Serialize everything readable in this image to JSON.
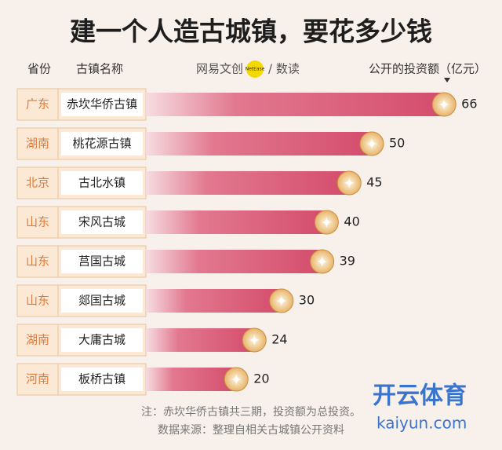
{
  "chart_data": {
    "type": "bar",
    "title": "建一个人造古城镇，要花多少钱",
    "province_header": "省份",
    "name_header": "古镇名称",
    "value_header": "公开的投资额（亿元）",
    "logo": "网易文创",
    "logo_badge": "NetEase",
    "logo_suffix": "/ 数读",
    "provinces": [
      "广东",
      "湖南",
      "北京",
      "山东",
      "山东",
      "山东",
      "湖南",
      "河南"
    ],
    "categories": [
      "赤坎华侨古镇",
      "桃花源古镇",
      "古北水镇",
      "宋风古城",
      "莒国古城",
      "郯国古城",
      "大庸古城",
      "板桥古镇"
    ],
    "values": [
      66,
      50,
      45,
      40,
      39,
      30,
      24,
      20
    ],
    "color": "#d9506f",
    "note": "注：赤坎华侨古镇共三期，投资额为总投资。",
    "source": "数据来源：整理自相关古城镇公开资料",
    "watermark": "开云体育",
    "watermark_url": "kaiyun.com"
  }
}
